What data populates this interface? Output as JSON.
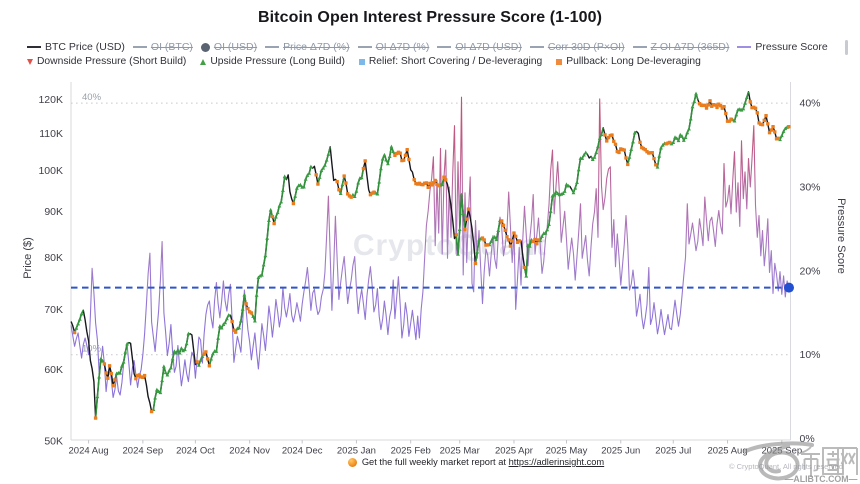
{
  "title": "Bitcoin Open Interest Pressure Score (1-100)",
  "legend": {
    "row1": [
      {
        "label": "BTC Price (USD)",
        "icon": "dash",
        "color": "#2e2f36",
        "struck": false
      },
      {
        "label": "OI (BTC)",
        "icon": "dash",
        "color": "#9aa3b2",
        "struck": true
      },
      {
        "label": "OI (USD)",
        "icon": "circle",
        "color": "#5a6372",
        "struck": true
      },
      {
        "label": "Price Δ7D (%)",
        "icon": "dash",
        "color": "#9aa3b2",
        "struck": true
      },
      {
        "label": "OI Δ7D (%)",
        "icon": "dash",
        "color": "#9aa3b2",
        "struck": true
      },
      {
        "label": "OI Δ7D (USD)",
        "icon": "dash",
        "color": "#9aa3b2",
        "struck": true
      },
      {
        "label": "Corr 30D (P×OI)",
        "icon": "dash",
        "color": "#9aa3b2",
        "struck": true
      },
      {
        "label": "Z OI Δ7D (365D)",
        "icon": "dash",
        "color": "#9aa3b2",
        "struck": true
      },
      {
        "label": "Pressure Score",
        "icon": "dash",
        "color": "#9e8fe3",
        "struck": false
      }
    ],
    "row2": [
      {
        "label": "Downside Pressure (Short Build)",
        "icon": "tri-down",
        "color": "#e0524a"
      },
      {
        "label": "Upside Pressure (Long Build)",
        "icon": "tri-up",
        "color": "#43a047"
      },
      {
        "label": "Relief: Short Covering / De-leveraging",
        "icon": "square",
        "color": "#7cb9ea"
      },
      {
        "label": "Pullback: Long De-leveraging",
        "icon": "square",
        "color": "#f08a3c"
      }
    ]
  },
  "axes": {
    "left": {
      "title": "Price ($)",
      "scale": "log",
      "ticks": [
        50,
        60,
        70,
        80,
        90,
        100,
        110,
        120
      ],
      "tick_labels": [
        "50K",
        "60K",
        "70K",
        "80K",
        "90K",
        "100K",
        "110K",
        "120K"
      ]
    },
    "right": {
      "title": "Pressure Score",
      "scale": "linear",
      "ticks": [
        0,
        10,
        20,
        30,
        40
      ],
      "tick_labels": [
        "0%",
        "10%",
        "20%",
        "30%",
        "40%"
      ]
    },
    "x": {
      "months": [
        {
          "label": "2024 Aug",
          "day": 10
        },
        {
          "label": "2024 Sep",
          "day": 41
        },
        {
          "label": "2024 Oct",
          "day": 71
        },
        {
          "label": "2024 Nov",
          "day": 102
        },
        {
          "label": "2024 Dec",
          "day": 132
        },
        {
          "label": "2025 Jan",
          "day": 163
        },
        {
          "label": "2025 Feb",
          "day": 194
        },
        {
          "label": "2025 Mar",
          "day": 222
        },
        {
          "label": "2025 Apr",
          "day": 253
        },
        {
          "label": "2025 May",
          "day": 283
        },
        {
          "label": "2025 Jun",
          "day": 314
        },
        {
          "label": "2025 Jul",
          "day": 344
        },
        {
          "label": "2025 Aug",
          "day": 375
        },
        {
          "label": "2025 Sep",
          "day": 406
        }
      ]
    }
  },
  "chart_data": {
    "type": "line",
    "title": "Bitcoin Open Interest Pressure Score (1-100)",
    "x_start_date": "2024-07-22",
    "x_end_date": "2025-09-05",
    "x_unit": "day",
    "ylabel_left": "Price ($)",
    "ylim_left": [
      50000,
      120000
    ],
    "yscale_left": "log",
    "ylabel_right": "Pressure Score",
    "ylim_right": [
      0,
      40
    ],
    "grid": "off",
    "legend_position": "top",
    "series": [
      {
        "name": "BTC Price (USD)",
        "axis": "left",
        "unit": "K USD",
        "color": "#17181d",
        "marker_states_key": "state",
        "values_key": "price"
      },
      {
        "name": "Pressure Score",
        "axis": "right",
        "unit": "%",
        "color_low": "#8b72d9",
        "color_high": "#c44f6e",
        "values_key": "pressure"
      }
    ],
    "price": [
      67.9,
      67.14,
      66.0,
      66.76,
      67.5,
      68.31,
      69.26,
      69.9,
      68.19,
      66.2,
      64.6,
      61.4,
      60.18,
      58.2,
      53.0,
      56.0,
      58.9,
      61.7,
      61.36,
      60.9,
      59.5,
      58.7,
      60.6,
      59.41,
      57.6,
      58.45,
      59.4,
      59.5,
      59.5,
      60.57,
      61.2,
      62.78,
      64.1,
      64.32,
      64.2,
      61.73,
      59.4,
      58.63,
      59.1,
      59.2,
      58.9,
      58.85,
      59.1,
      57.71,
      56.0,
      55.07,
      53.9,
      54.2,
      55.81,
      57.0,
      56.75,
      56.6,
      58.36,
      60.5,
      59.57,
      59.2,
      59.83,
      60.3,
      61.7,
      62.9,
      62.65,
      63.1,
      62.64,
      63.4,
      63.01,
      63.2,
      64.14,
      65.8,
      65.8,
      65.6,
      63.16,
      60.8,
      61.21,
      60.7,
      61.5,
      62.1,
      62.45,
      62.8,
      61.71,
      60.6,
      61.68,
      62.5,
      62.92,
      62.9,
      65.07,
      67.1,
      66.8,
      67.4,
      67.69,
      68.4,
      69.01,
      69.0,
      67.91,
      66.4,
      66.06,
      66.7,
      66.81,
      68.0,
      70.09,
      72.7,
      71.04,
      70.2,
      69.61,
      69.4,
      68.82,
      68.0,
      72.65,
      76.0,
      76.32,
      76.5,
      78.54,
      80.4,
      84.09,
      88.0,
      90.4,
      88.87,
      87.3,
      88.81,
      89.8,
      91.35,
      92.3,
      95.03,
      98.5,
      97.7,
      98.9,
      94.73,
      93.0,
      91.9,
      93.64,
      95.6,
      96.25,
      96.4,
      95.83,
      95.9,
      97.84,
      98.8,
      99.33,
      101.0,
      100.61,
      101.1,
      98.92,
      96.6,
      98.29,
      100.0,
      100.65,
      101.4,
      102.73,
      104.3,
      106.3,
      101.75,
      97.5,
      97.8,
      97.2,
      95.2,
      94.3,
      96.47,
      98.6,
      96.85,
      94.2,
      93.7,
      93.4,
      93.96,
      93.6,
      94.86,
      96.9,
      98.06,
      98.2,
      100.52,
      102.5,
      98.71,
      95.2,
      94.0,
      94.37,
      94.6,
      94.39,
      94.2,
      97.15,
      100.5,
      103.04,
      104.1,
      102.77,
      101.8,
      103.7,
      106.3,
      105.02,
      104.0,
      104.46,
      104.8,
      104.55,
      102.6,
      102.71,
      104.0,
      105.5,
      102.9,
      100.2,
      99.63,
      97.7,
      96.72,
      96.6,
      96.77,
      96.5,
      96.45,
      96.8,
      96.88,
      95.8,
      96.75,
      96.4,
      96.9,
      97.5,
      96.5,
      96.2,
      96.36,
      96.5,
      98.3,
      97.65,
      96.5,
      94.17,
      91.4,
      88.09,
      84.0,
      84.8,
      80.7,
      86.0,
      94.0,
      89.59,
      86.0,
      88.28,
      90.6,
      88.66,
      86.2,
      82.78,
      78.8,
      81.16,
      83.7,
      83.94,
      84.1,
      83.7,
      82.6,
      82.65,
      82.7,
      83.43,
      84.2,
      84.33,
      83.8,
      85.77,
      88.0,
      87.87,
      86.9,
      85.79,
      84.4,
      83.72,
      82.4,
      83.48,
      85.2,
      84.48,
      83.2,
      83.5,
      83.5,
      80.54,
      78.0,
      76.3,
      82.6,
      82.38,
      83.7,
      83.39,
      83.8,
      82.9,
      83.7,
      83.57,
      84.5,
      85.12,
      85.2,
      85.93,
      87.1,
      90.08,
      93.7,
      93.92,
      94.7,
      94.29,
      94.0,
      94.12,
      94.3,
      94.84,
      96.5,
      96.16,
      96.0,
      95.26,
      94.5,
      95.63,
      97.0,
      100.24,
      103.2,
      103.21,
      104.1,
      104.71,
      104.2,
      103.29,
      103.7,
      102.91,
      103.5,
      104.74,
      106.4,
      108.65,
      109.7,
      111.6,
      109.58,
      107.9,
      108.85,
      109.4,
      109.52,
      107.8,
      106.98,
      105.0,
      104.78,
      105.7,
      105.52,
      105.4,
      103.3,
      101.6,
      103.49,
      105.6,
      107.67,
      110.2,
      110.54,
      110.0,
      107.51,
      106.1,
      105.79,
      105.5,
      104.96,
      104.6,
      104.65,
      104.7,
      103.14,
      101.5,
      100.9,
      103.82,
      106.0,
      106.77,
      107.2,
      107.12,
      107.3,
      107.48,
      107.1,
      107.5,
      108.9,
      108.63,
      108.0,
      109.59,
      109.2,
      108.1,
      108.9,
      110.23,
      111.3,
      114.22,
      117.8,
      119.38,
      121.8,
      120.01,
      118.7,
      118.24,
      118.2,
      118.21,
      117.4,
      118.34,
      119.6,
      117.92,
      118.4,
      118.29,
      117.6,
      118.56,
      118.1,
      117.37,
      117.8,
      115.78,
      113.5,
      113.52,
      114.1,
      113.91,
      113.6,
      115.39,
      116.9,
      117.04,
      116.8,
      117.18,
      118.9,
      120.62,
      122.4,
      119.27,
      117.5,
      117.6,
      117.3,
      115.95,
      113.0,
      112.6,
      112.5,
      113.74,
      115.1,
      112.74,
      110.2,
      110.94,
      111.9,
      110.43,
      108.5,
      108.62,
      108.3,
      109.4,
      110.6,
      111.4,
      111.75,
      111.9
    ],
    "pressure": [
      13.5,
      12.24,
      11.0,
      11.89,
      12.6,
      11.05,
      9.6,
      11.19,
      12.0,
      11.11,
      10.0,
      14.66,
      20.3,
      17.37,
      13.8,
      11.78,
      8.0,
      9.24,
      11.0,
      8.9,
      5.6,
      7.63,
      8.8,
      6.96,
      4.9,
      5.84,
      7.4,
      5.67,
      5.2,
      6.68,
      8.9,
      10.2,
      11.2,
      8.93,
      6.4,
      8.41,
      9.3,
      7.58,
      6.1,
      7.52,
      8.2,
      10.06,
      12.5,
      15.99,
      19.6,
      22.1,
      13.9,
      12.08,
      10.4,
      12.88,
      15.2,
      18.93,
      23.5,
      15.0,
      12.72,
      9.9,
      11.32,
      13.6,
      10.32,
      7.9,
      8.64,
      11.1,
      8.62,
      6.3,
      7.62,
      9.4,
      7.82,
      6.8,
      8.71,
      10.3,
      9.79,
      7.2,
      9.64,
      12.1,
      11.76,
      9.0,
      12.44,
      14.8,
      15.92,
      16.4,
      14.44,
      13.2,
      16.46,
      18.6,
      16.12,
      14.4,
      16.37,
      18.8,
      16.42,
      15.2,
      17.11,
      18.4,
      14.19,
      9.1,
      10.65,
      12.2,
      11.33,
      10.3,
      13.69,
      17.7,
      15.35,
      13.0,
      11.56,
      9.4,
      10.98,
      12.6,
      10.33,
      8.3,
      10.75,
      13.7,
      12.25,
      10.5,
      13.1,
      15.8,
      14.19,
      12.1,
      14.11,
      16.6,
      15.1,
      13.3,
      14.71,
      18.0,
      15.59,
      14.5,
      15.74,
      17.3,
      14.72,
      13.9,
      14.9,
      16.2,
      15.13,
      14.0,
      16.06,
      17.5,
      18.82,
      20.4,
      18.04,
      15.3,
      17.36,
      17.8,
      15.93,
      14.8,
      15.26,
      16.9,
      17.76,
      19.8,
      24.33,
      28.9,
      21.85,
      15.3,
      20.47,
      26.5,
      21.25,
      16.6,
      18.62,
      20.26,
      21.7,
      18.91,
      16.1,
      17.67,
      18.9,
      20.64,
      21.7,
      17.98,
      14.9,
      16.51,
      17.8,
      16.1,
      14.2,
      16.94,
      18.97,
      20.5,
      18.16,
      15.1,
      15.97,
      17.9,
      14.59,
      13.0,
      14.29,
      16.4,
      14.6,
      12.4,
      14.54,
      15.5,
      18.9,
      14.3,
      16.87,
      19.3,
      15.98,
      12.0,
      13.56,
      16.2,
      14.68,
      12.2,
      13.8,
      15.3,
      13.51,
      11.8,
      14.6,
      12.0,
      15.45,
      17.5,
      21.67,
      25.4,
      27.18,
      29.5,
      31.06,
      33.6,
      23.0,
      30.8,
      24.5,
      34.6,
      22.0,
      31.2,
      34.4,
      21.5,
      30.0,
      24.0,
      31.5,
      37.3,
      22.0,
      33.0,
      24.5,
      40.7,
      19.5,
      29.3,
      21.0,
      27.0,
      31.2,
      18.5,
      17.5,
      26.0,
      21.5,
      24.8,
      20.29,
      16.1,
      19.9,
      22.6,
      21.89,
      19.4,
      21.97,
      24.2,
      21.47,
      20.3,
      24.0,
      26.4,
      25.19,
      21.8,
      23.01,
      25.0,
      29.4,
      25.12,
      21.0,
      24.6,
      15.4,
      19.01,
      22.8,
      18.3,
      23.6,
      27.7,
      24.42,
      20.6,
      23.67,
      25.9,
      29.1,
      22.0,
      24.08,
      26.3,
      23.15,
      19.7,
      21.08,
      23.8,
      25.21,
      27.9,
      32.02,
      34.4,
      26.8,
      30.1,
      33.0,
      28.98,
      23.4,
      25.31,
      27.1,
      23.73,
      20.2,
      22.2,
      23.9,
      22.01,
      18.9,
      21.75,
      24.6,
      28.0,
      21.5,
      22.89,
      24.2,
      21.24,
      19.4,
      22.88,
      25.6,
      27.04,
      29.8,
      24.0,
      40.5,
      30.1,
      27.3,
      28.74,
      31.0,
      32.13,
      32.4,
      22.8,
      26.1,
      20.5,
      24.4,
      21.68,
      18.3,
      20.66,
      23.2,
      26.6,
      23.0,
      17.7,
      18.43,
      20.1,
      18.14,
      14.6,
      15.8,
      17.2,
      14.51,
      13.1,
      14.42,
      16.0,
      20.4,
      13.6,
      14.44,
      16.2,
      14.39,
      12.5,
      13.71,
      15.4,
      13.79,
      12.4,
      13.61,
      14.8,
      13.16,
      13.0,
      14.77,
      16.5,
      14.85,
      13.4,
      14.83,
      17.0,
      19.46,
      21.6,
      28.0,
      23.2,
      24.41,
      25.7,
      24.03,
      22.4,
      23.52,
      26.2,
      24.73,
      23.0,
      28.8,
      26.07,
      23.6,
      25.94,
      26.4,
      24.82,
      22.9,
      25.58,
      27.2,
      25.46,
      24.4,
      32.8,
      27.6,
      28.35,
      30.2,
      26.8,
      30.9,
      34.2,
      27.0,
      30.5,
      25.3,
      35.5,
      28.6,
      31.8,
      27.4,
      33.4,
      30.0,
      33.35,
      37.3,
      27.8,
      24.0,
      26.6,
      21.8,
      24.8,
      20.6,
      22.84,
      26.2,
      19.8,
      22.4,
      17.3,
      20.9,
      19.63,
      17.6,
      19.9,
      17.2,
      19.4,
      16.9,
      18.8,
      18.0
    ],
    "state": "bboggggbbbbbbboggggooooooogggggggbbbboooooobbbogggggggggggggggggggggbbbbogggoooogggggggggggbooogggggoooogggggggggggooggggggbbbboggggggggggbbooggggggbbbbooggoooooggggggoobbooogggggggggggooooooooobboooooooooooooooggoobbbbboggggooobbbogggoooogggggggooooooooooobboggggoooogggggggggggggggggbbggggggggbbbggggggbooooooooooooooggggbboooooooooogggggooogggggggggggggggbooooooooooooooooooogggggggggbooooooooooooooooogggggo",
    "marker_legend": {
      "g": "Upside Pressure (Long Build)",
      "o": "Pullback: Long De-leveraging",
      "b": "no marker"
    },
    "thresholds": [
      {
        "value": 40,
        "label": "40%"
      },
      {
        "value": 10,
        "label": "10%"
      }
    ],
    "signal_line": {
      "value": 18,
      "color": "#2f55c9",
      "style": "dashed",
      "end_dot": true
    }
  },
  "colors": {
    "price_line": "#17181d",
    "upside_marker": "#3b9c43",
    "pullback_marker": "#ea7d1e",
    "pressure_low": "#8b72d9",
    "pressure_high": "#c44f6e",
    "signal_blue": "#2f55c9",
    "axis_line": "#d9dadf",
    "tick_text": "#40414a",
    "threshold_line": "#c9c9ce",
    "watermark": "#9ba0b0"
  },
  "watermark_center": "CryptoQuant",
  "footer": {
    "bullet_icon": "orange-dot",
    "text_prefix": "Get the full weekly market report at ",
    "link_text": "https://adlerinsight.com"
  },
  "copyright": "© CryptoQuant. All rights reserved",
  "badge": {
    "chars": "币圈网",
    "domain": "—ALIBTC.COM—"
  }
}
